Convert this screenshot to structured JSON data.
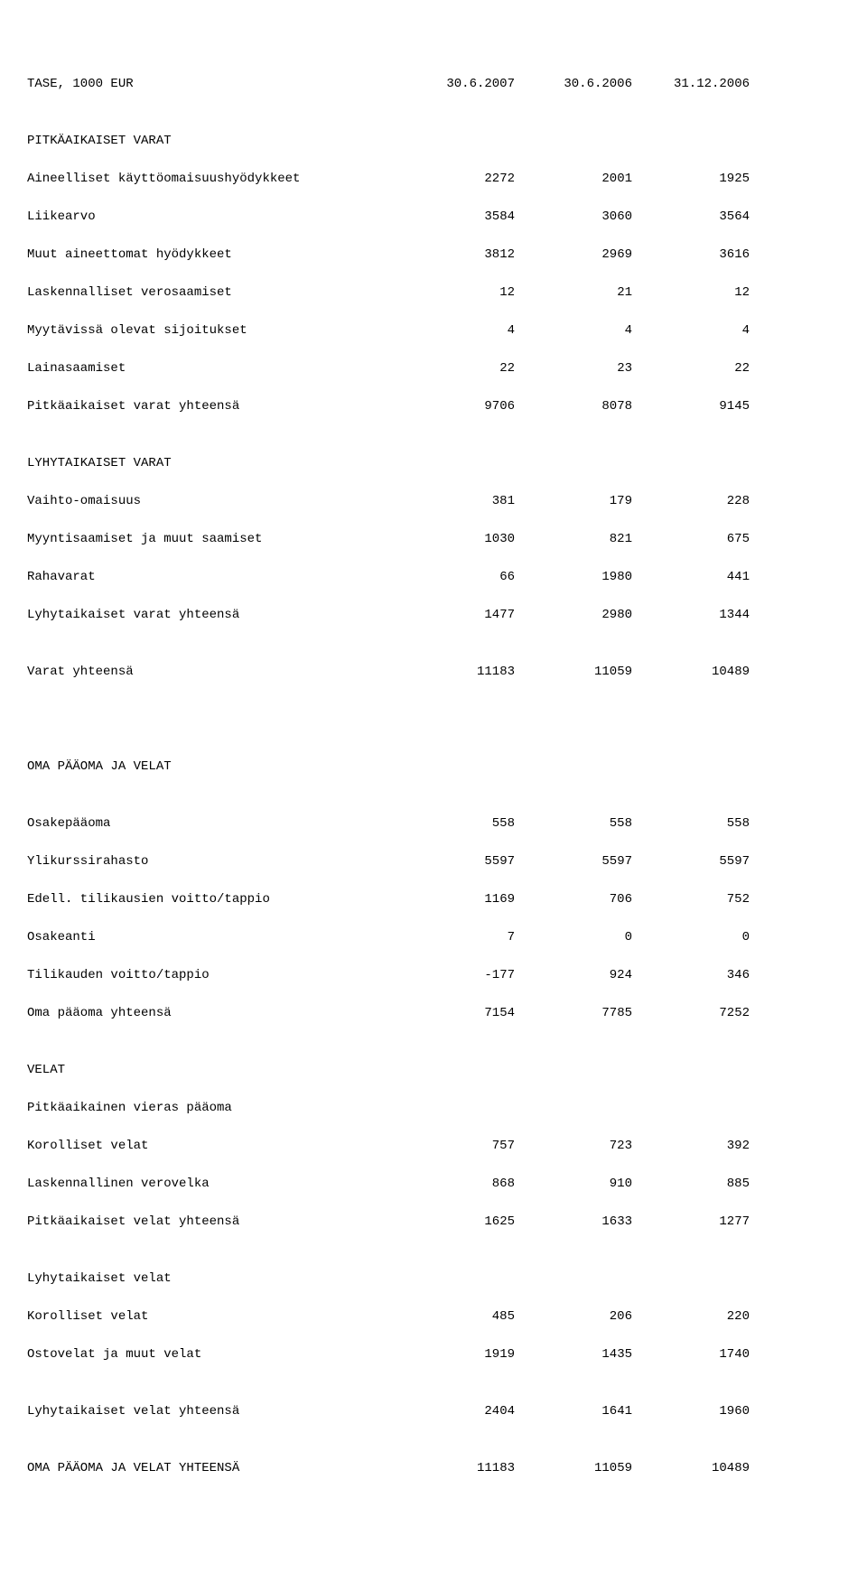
{
  "header": {
    "title": "TASE, 1000 EUR",
    "col1": "30.6.2007",
    "col2": "30.6.2006",
    "col3": "31.12.2006"
  },
  "section1": {
    "title": "PITKÄAIKAISET VARAT",
    "rows": [
      {
        "label": "Aineelliset käyttöomaisuushyödykkeet",
        "c1": "2272",
        "c2": "2001",
        "c3": "1925"
      },
      {
        "label": "Liikearvo",
        "c1": "3584",
        "c2": "3060",
        "c3": "3564"
      },
      {
        "label": "Muut aineettomat hyödykkeet",
        "c1": "3812",
        "c2": "2969",
        "c3": "3616"
      },
      {
        "label": "Laskennalliset verosaamiset",
        "c1": "12",
        "c2": "21",
        "c3": "12"
      },
      {
        "label": "Myytävissä olevat sijoitukset",
        "c1": "4",
        "c2": "4",
        "c3": "4"
      },
      {
        "label": "Lainasaamiset",
        "c1": "22",
        "c2": "23",
        "c3": "22"
      },
      {
        "label": "Pitkäaikaiset varat yhteensä",
        "c1": "9706",
        "c2": "8078",
        "c3": "9145"
      }
    ]
  },
  "section2": {
    "title": "LYHYTAIKAISET VARAT",
    "rows": [
      {
        "label": "Vaihto-omaisuus",
        "c1": "381",
        "c2": "179",
        "c3": "228"
      },
      {
        "label": "Myyntisaamiset ja muut saamiset",
        "c1": "1030",
        "c2": "821",
        "c3": "675"
      },
      {
        "label": "Rahavarat",
        "c1": "66",
        "c2": "1980",
        "c3": "441"
      },
      {
        "label": "Lyhytaikaiset varat yhteensä",
        "c1": "1477",
        "c2": "2980",
        "c3": "1344"
      }
    ]
  },
  "total1": {
    "label": "Varat yhteensä",
    "c1": "11183",
    "c2": "11059",
    "c3": "10489"
  },
  "section3": {
    "title": "OMA PÄÄOMA JA VELAT",
    "rows": [
      {
        "label": "Osakepääoma",
        "c1": "558",
        "c2": "558",
        "c3": "558"
      },
      {
        "label": "Ylikurssirahasto",
        "c1": "5597",
        "c2": "5597",
        "c3": "5597"
      },
      {
        "label": "Edell. tilikausien voitto/tappio",
        "c1": "1169",
        "c2": "706",
        "c3": "752"
      },
      {
        "label": "Osakeanti",
        "c1": "7",
        "c2": "0",
        "c3": "0"
      },
      {
        "label": "Tilikauden voitto/tappio",
        "c1": "-177",
        "c2": "924",
        "c3": "346"
      },
      {
        "label": "Oma pääoma yhteensä",
        "c1": "7154",
        "c2": "7785",
        "c3": "7252"
      }
    ]
  },
  "section4": {
    "title": "VELAT",
    "subtitle": "Pitkäaikainen vieras pääoma",
    "rows": [
      {
        "label": "Korolliset velat",
        "c1": "757",
        "c2": "723",
        "c3": "392"
      },
      {
        "label": "Laskennallinen verovelka",
        "c1": "868",
        "c2": "910",
        "c3": "885"
      },
      {
        "label": "Pitkäaikaiset velat yhteensä",
        "c1": "1625",
        "c2": "1633",
        "c3": "1277"
      }
    ]
  },
  "section5": {
    "title": "Lyhytaikaiset velat",
    "rows": [
      {
        "label": "Korolliset velat",
        "c1": "485",
        "c2": "206",
        "c3": "220"
      },
      {
        "label": "Ostovelat ja muut velat",
        "c1": "1919",
        "c2": "1435",
        "c3": "1740"
      }
    ]
  },
  "total2": {
    "label": "Lyhytaikaiset velat yhteensä",
    "c1": "2404",
    "c2": "1641",
    "c3": "1960"
  },
  "total3": {
    "label": "OMA PÄÄOMA JA VELAT YHTEENSÄ",
    "c1": "11183",
    "c2": "11059",
    "c3": "10489"
  }
}
